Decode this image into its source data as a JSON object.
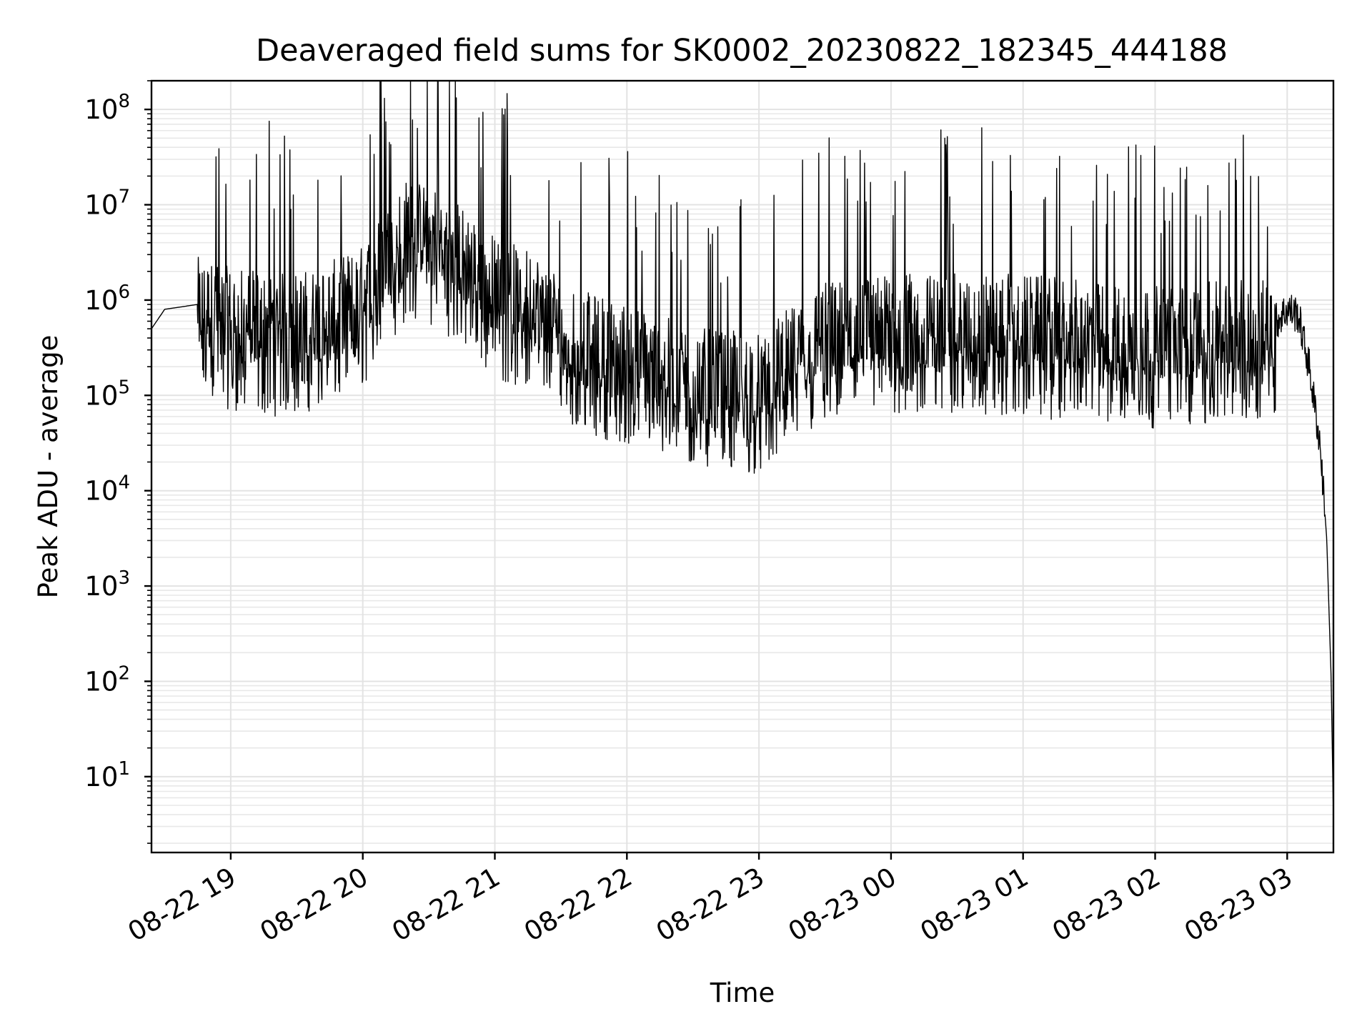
{
  "chart_data": {
    "type": "line",
    "title": "Deaveraged field sums for SK0002_20230822_182345_444188",
    "xlabel": "Time",
    "ylabel": "Peak ADU - average",
    "yscale": "log",
    "ylim": [
      1.6,
      200000000
    ],
    "xlim": [
      "2023-08-22 18:24",
      "2023-08-23 03:21"
    ],
    "grid": "major and minor",
    "legend": "none",
    "line_color": "#000000",
    "x_ticks": [
      "08-22 19",
      "08-22 20",
      "08-22 21",
      "08-22 22",
      "08-22 23",
      "08-23 00",
      "08-23 01",
      "08-23 02",
      "08-23 03"
    ],
    "y_ticks": [
      {
        "base": "10",
        "exp": "1",
        "value": 10
      },
      {
        "base": "10",
        "exp": "2",
        "value": 100
      },
      {
        "base": "10",
        "exp": "3",
        "value": 1000
      },
      {
        "base": "10",
        "exp": "4",
        "value": 10000
      },
      {
        "base": "10",
        "exp": "5",
        "value": 100000
      },
      {
        "base": "10",
        "exp": "6",
        "value": 1000000
      },
      {
        "base": "10",
        "exp": "7",
        "value": 10000000
      },
      {
        "base": "10",
        "exp": "8",
        "value": 100000000
      }
    ],
    "series": [
      {
        "x": [
          "2023-08-22 18:24",
          "2023-08-22 18:30",
          "2023-08-22 18:45",
          "2023-08-22 19:00",
          "2023-08-22 19:20",
          "2023-08-22 19:40",
          "2023-08-22 20:00",
          "2023-08-22 20:10",
          "2023-08-22 20:20",
          "2023-08-22 20:35",
          "2023-08-22 20:50",
          "2023-08-22 21:00",
          "2023-08-22 21:20",
          "2023-08-22 21:40",
          "2023-08-22 22:00",
          "2023-08-22 22:20",
          "2023-08-22 22:40",
          "2023-08-22 23:00",
          "2023-08-22 23:30",
          "2023-08-23 00:00",
          "2023-08-23 00:30",
          "2023-08-23 01:00",
          "2023-08-23 01:30",
          "2023-08-23 02:00",
          "2023-08-23 02:30",
          "2023-08-23 02:55",
          "2023-08-23 03:00",
          "2023-08-23 03:05",
          "2023-08-23 03:10",
          "2023-08-23 03:15",
          "2023-08-23 03:18",
          "2023-08-23 03:20",
          "2023-08-23 03:21"
        ],
        "y": [
          500000,
          800000,
          900000,
          700000,
          600000,
          700000,
          1200000,
          3000000,
          6000000,
          5000000,
          2500000,
          1500000,
          1000000,
          400000,
          300000,
          200000,
          150000,
          150000,
          500000,
          600000,
          600000,
          600000,
          500000,
          450000,
          500000,
          600000,
          800000,
          700000,
          200000,
          30000,
          3000,
          100,
          3.8
        ]
      }
    ]
  }
}
